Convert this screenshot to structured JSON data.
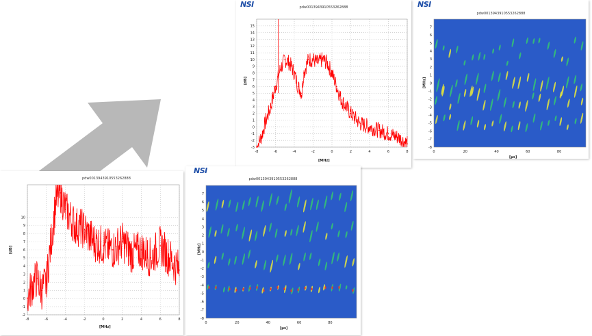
{
  "logo_text": "NSI",
  "colors": {
    "spectrum_line": "#ff0000",
    "spectrogram_bg": "#2a5bc8",
    "arrow": "#b8b8b8"
  },
  "arrow_icon": "arrow-up-right-icon",
  "chart_data": [
    {
      "id": "spectrum_top",
      "type": "line",
      "title": "pdw0013943910553262888",
      "xlabel": "[MHz]",
      "ylabel": "[dB]",
      "xlim": [
        -8,
        8
      ],
      "ylim": [
        -3,
        16
      ],
      "xticks": [
        -8,
        -6,
        -4,
        -2,
        0,
        2,
        4,
        6,
        8
      ],
      "yticks": [
        -3,
        -2,
        -1,
        0,
        1,
        2,
        3,
        4,
        5,
        6,
        7,
        8,
        9,
        10,
        11,
        12,
        13,
        14,
        15
      ],
      "grid": true,
      "series": [
        {
          "x": [
            -8,
            -7.5,
            -7,
            -6.5,
            -6,
            -5.5,
            -5,
            -4.5,
            -4,
            -3.6,
            -3.2,
            -3,
            -2.5,
            -2,
            -1.5,
            -1,
            -0.5,
            0,
            0.5,
            1,
            2,
            3,
            4,
            5,
            6,
            7,
            8
          ],
          "values": [
            -3,
            -1.5,
            1,
            3,
            6,
            8.5,
            10,
            9.5,
            8,
            6,
            5,
            8,
            10,
            10,
            9.5,
            10,
            9.5,
            8,
            6,
            4,
            2,
            0.5,
            0,
            -0.5,
            -1,
            -1.5,
            -2.5
          ],
          "spike": {
            "x": -5.7,
            "y": 16
          }
        }
      ]
    },
    {
      "id": "spectrogram_top",
      "type": "heatmap",
      "title": "pdw0013943910553262888",
      "xlabel": "[µs]",
      "ylabel": "[MHz]",
      "xlim": [
        0,
        97
      ],
      "ylim": [
        -8,
        8
      ],
      "xticks": [
        0,
        20,
        40,
        60,
        80
      ],
      "yticks": [
        -8,
        -7,
        -6,
        -5,
        -4,
        -3,
        -2,
        -1,
        0,
        1,
        2,
        3,
        4,
        5,
        6,
        7
      ],
      "grid": false
    },
    {
      "id": "spectrum_bottom",
      "type": "line",
      "title": "pdw0013943910553262888",
      "xlabel": "[MHz]",
      "ylabel": "[dB]",
      "xlim": [
        -8,
        8
      ],
      "ylim": [
        -2,
        14
      ],
      "xticks": [
        -8,
        -6,
        -4,
        -2,
        0,
        2,
        4,
        6,
        8
      ],
      "yticks": [
        -2,
        -1,
        0,
        1,
        2,
        3,
        4,
        5,
        6,
        7,
        8,
        9,
        10
      ],
      "grid": true,
      "series": [
        {
          "x": [
            -8,
            -7.5,
            -7,
            -6.5,
            -6,
            -5.5,
            -5,
            -4.5,
            -4,
            -3,
            -2,
            -1,
            0,
            1,
            2,
            3,
            4,
            5,
            6,
            7,
            8
          ],
          "values": [
            0,
            1.5,
            2.5,
            1,
            2,
            7,
            12,
            13,
            11,
            9,
            8.5,
            7,
            6.5,
            6,
            7,
            5.5,
            6,
            5,
            6.5,
            5,
            3.5
          ]
        }
      ]
    },
    {
      "id": "spectrogram_bottom",
      "type": "heatmap",
      "title": "pdw0013943910553262888",
      "xlabel": "[µs]",
      "ylabel": "[MHz]",
      "xlim": [
        0,
        97
      ],
      "ylim": [
        -8,
        8
      ],
      "xticks": [
        0,
        20,
        40,
        60,
        80
      ],
      "yticks": [
        -8,
        -7,
        -6,
        -5,
        -4,
        -3,
        -2,
        -1,
        0,
        1,
        2,
        3,
        4,
        5,
        6,
        7
      ],
      "grid": false
    }
  ]
}
